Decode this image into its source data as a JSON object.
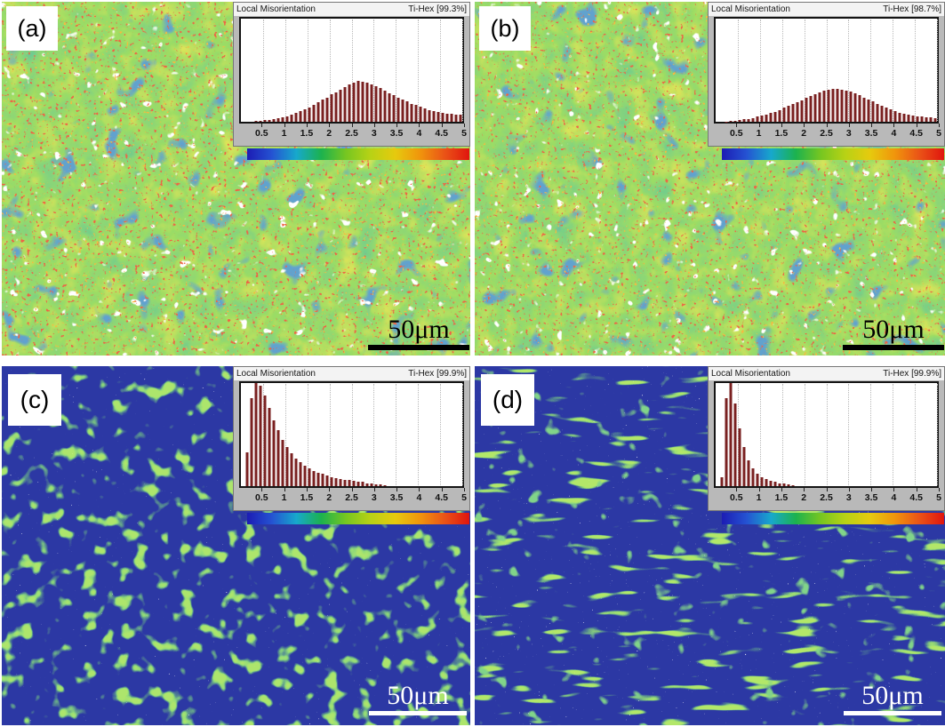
{
  "figure": {
    "background": "#ffffff",
    "panels": [
      {
        "id": "a",
        "label": "(a)",
        "scalebar": "50μm",
        "scalebar_color": "#000000"
      },
      {
        "id": "b",
        "label": "(b)",
        "scalebar": "50μm",
        "scalebar_color": "#000000"
      },
      {
        "id": "c",
        "label": "(c)",
        "scalebar": "50μm",
        "scalebar_color": "#ffffff"
      },
      {
        "id": "d",
        "label": "(d)",
        "scalebar": "50μm",
        "scalebar_color": "#ffffff"
      }
    ]
  },
  "palette": {
    "histogram_bar": "#7a2020",
    "micrograph_green_base": "#57b62a",
    "micrograph_blue_base": "#2c38a4",
    "inset_background": "#b9b9b9"
  },
  "colorbar": {
    "orientation": "horizontal",
    "range": [
      0,
      5
    ],
    "stops": [
      "#1c1cb4",
      "#2553d2",
      "#17a8cc",
      "#1cb24e",
      "#76c621",
      "#b8d215",
      "#e6ca0e",
      "#f0950c",
      "#ea5317",
      "#e0150e"
    ]
  },
  "chart_data": [
    {
      "type": "bar",
      "panel": "a",
      "title": "Local Misorientation",
      "phase": "Ti-Hex [99.3%]",
      "xlim": [
        0,
        5
      ],
      "bin_start": 0.05,
      "bin_width": 0.1,
      "xticks": [
        "0.5",
        "1",
        "1.5",
        "2",
        "2.5",
        "3",
        "3.5",
        "4",
        "4.5",
        "5"
      ],
      "grid": "dotted-vertical",
      "peak_height_frac": 0.4,
      "values": [
        0,
        0,
        0,
        0.02,
        0.03,
        0.04,
        0.05,
        0.07,
        0.09,
        0.11,
        0.14,
        0.17,
        0.21,
        0.25,
        0.3,
        0.35,
        0.41,
        0.47,
        0.53,
        0.59,
        0.66,
        0.72,
        0.78,
        0.84,
        0.9,
        0.95,
        1.0,
        0.97,
        0.94,
        0.9,
        0.86,
        0.81,
        0.76,
        0.7,
        0.65,
        0.59,
        0.54,
        0.49,
        0.44,
        0.4,
        0.36,
        0.32,
        0.29,
        0.26,
        0.24,
        0.22,
        0.2,
        0.19,
        0.18,
        0.17
      ]
    },
    {
      "type": "bar",
      "panel": "b",
      "title": "Local Misorientation",
      "phase": "Ti-Hex [98.7%]",
      "xlim": [
        0,
        5
      ],
      "bin_start": 0.05,
      "bin_width": 0.1,
      "xticks": [
        "0.5",
        "1",
        "1.5",
        "2",
        "2.5",
        "3",
        "3.5",
        "4",
        "4.5",
        "5"
      ],
      "grid": "dotted-vertical",
      "peak_height_frac": 0.32,
      "values": [
        0,
        0,
        0.01,
        0.02,
        0.03,
        0.05,
        0.07,
        0.09,
        0.12,
        0.15,
        0.18,
        0.22,
        0.26,
        0.31,
        0.36,
        0.42,
        0.48,
        0.54,
        0.6,
        0.66,
        0.72,
        0.78,
        0.84,
        0.89,
        0.94,
        0.97,
        1.0,
        1.0,
        0.98,
        0.95,
        0.91,
        0.86,
        0.8,
        0.74,
        0.67,
        0.61,
        0.54,
        0.48,
        0.42,
        0.37,
        0.32,
        0.28,
        0.25,
        0.22,
        0.19,
        0.17,
        0.15,
        0.14,
        0.13,
        0.12
      ]
    },
    {
      "type": "bar",
      "panel": "c",
      "title": "Local Misorientation",
      "phase": "Ti-Hex [99.9%]",
      "xlim": [
        0,
        5
      ],
      "bin_start": 0.05,
      "bin_width": 0.1,
      "xticks": [
        "0.5",
        "1",
        "1.5",
        "2",
        "2.5",
        "3",
        "3.5",
        "4",
        "4.5",
        "5"
      ],
      "grid": "dotted-vertical",
      "peak_height_frac": 1.0,
      "values": [
        0,
        0.33,
        0.85,
        1.0,
        0.97,
        0.88,
        0.76,
        0.64,
        0.54,
        0.45,
        0.38,
        0.32,
        0.27,
        0.23,
        0.2,
        0.17,
        0.15,
        0.13,
        0.12,
        0.1,
        0.09,
        0.08,
        0.07,
        0.06,
        0.06,
        0.05,
        0.04,
        0.04,
        0.03,
        0.03,
        0.02,
        0.02,
        0.01,
        0,
        0,
        0,
        0,
        0,
        0,
        0,
        0,
        0,
        0,
        0,
        0,
        0,
        0,
        0,
        0,
        0
      ]
    },
    {
      "type": "bar",
      "panel": "d",
      "title": "Local Misorientation",
      "phase": "Ti-Hex [99.9%]",
      "xlim": [
        0,
        5
      ],
      "bin_start": 0.05,
      "bin_width": 0.1,
      "xticks": [
        "0.5",
        "1",
        "1.5",
        "2",
        "2.5",
        "3",
        "3.5",
        "4",
        "4.5",
        "5"
      ],
      "grid": "dotted-vertical",
      "peak_height_frac": 1.0,
      "values": [
        0,
        0.09,
        0.85,
        1.0,
        0.8,
        0.56,
        0.38,
        0.25,
        0.17,
        0.12,
        0.09,
        0.07,
        0.05,
        0.04,
        0.03,
        0.03,
        0.02,
        0.01,
        0,
        0,
        0,
        0,
        0,
        0,
        0,
        0,
        0,
        0,
        0,
        0,
        0,
        0,
        0,
        0,
        0,
        0,
        0,
        0,
        0,
        0,
        0,
        0,
        0,
        0,
        0,
        0,
        0,
        0,
        0,
        0
      ]
    }
  ]
}
